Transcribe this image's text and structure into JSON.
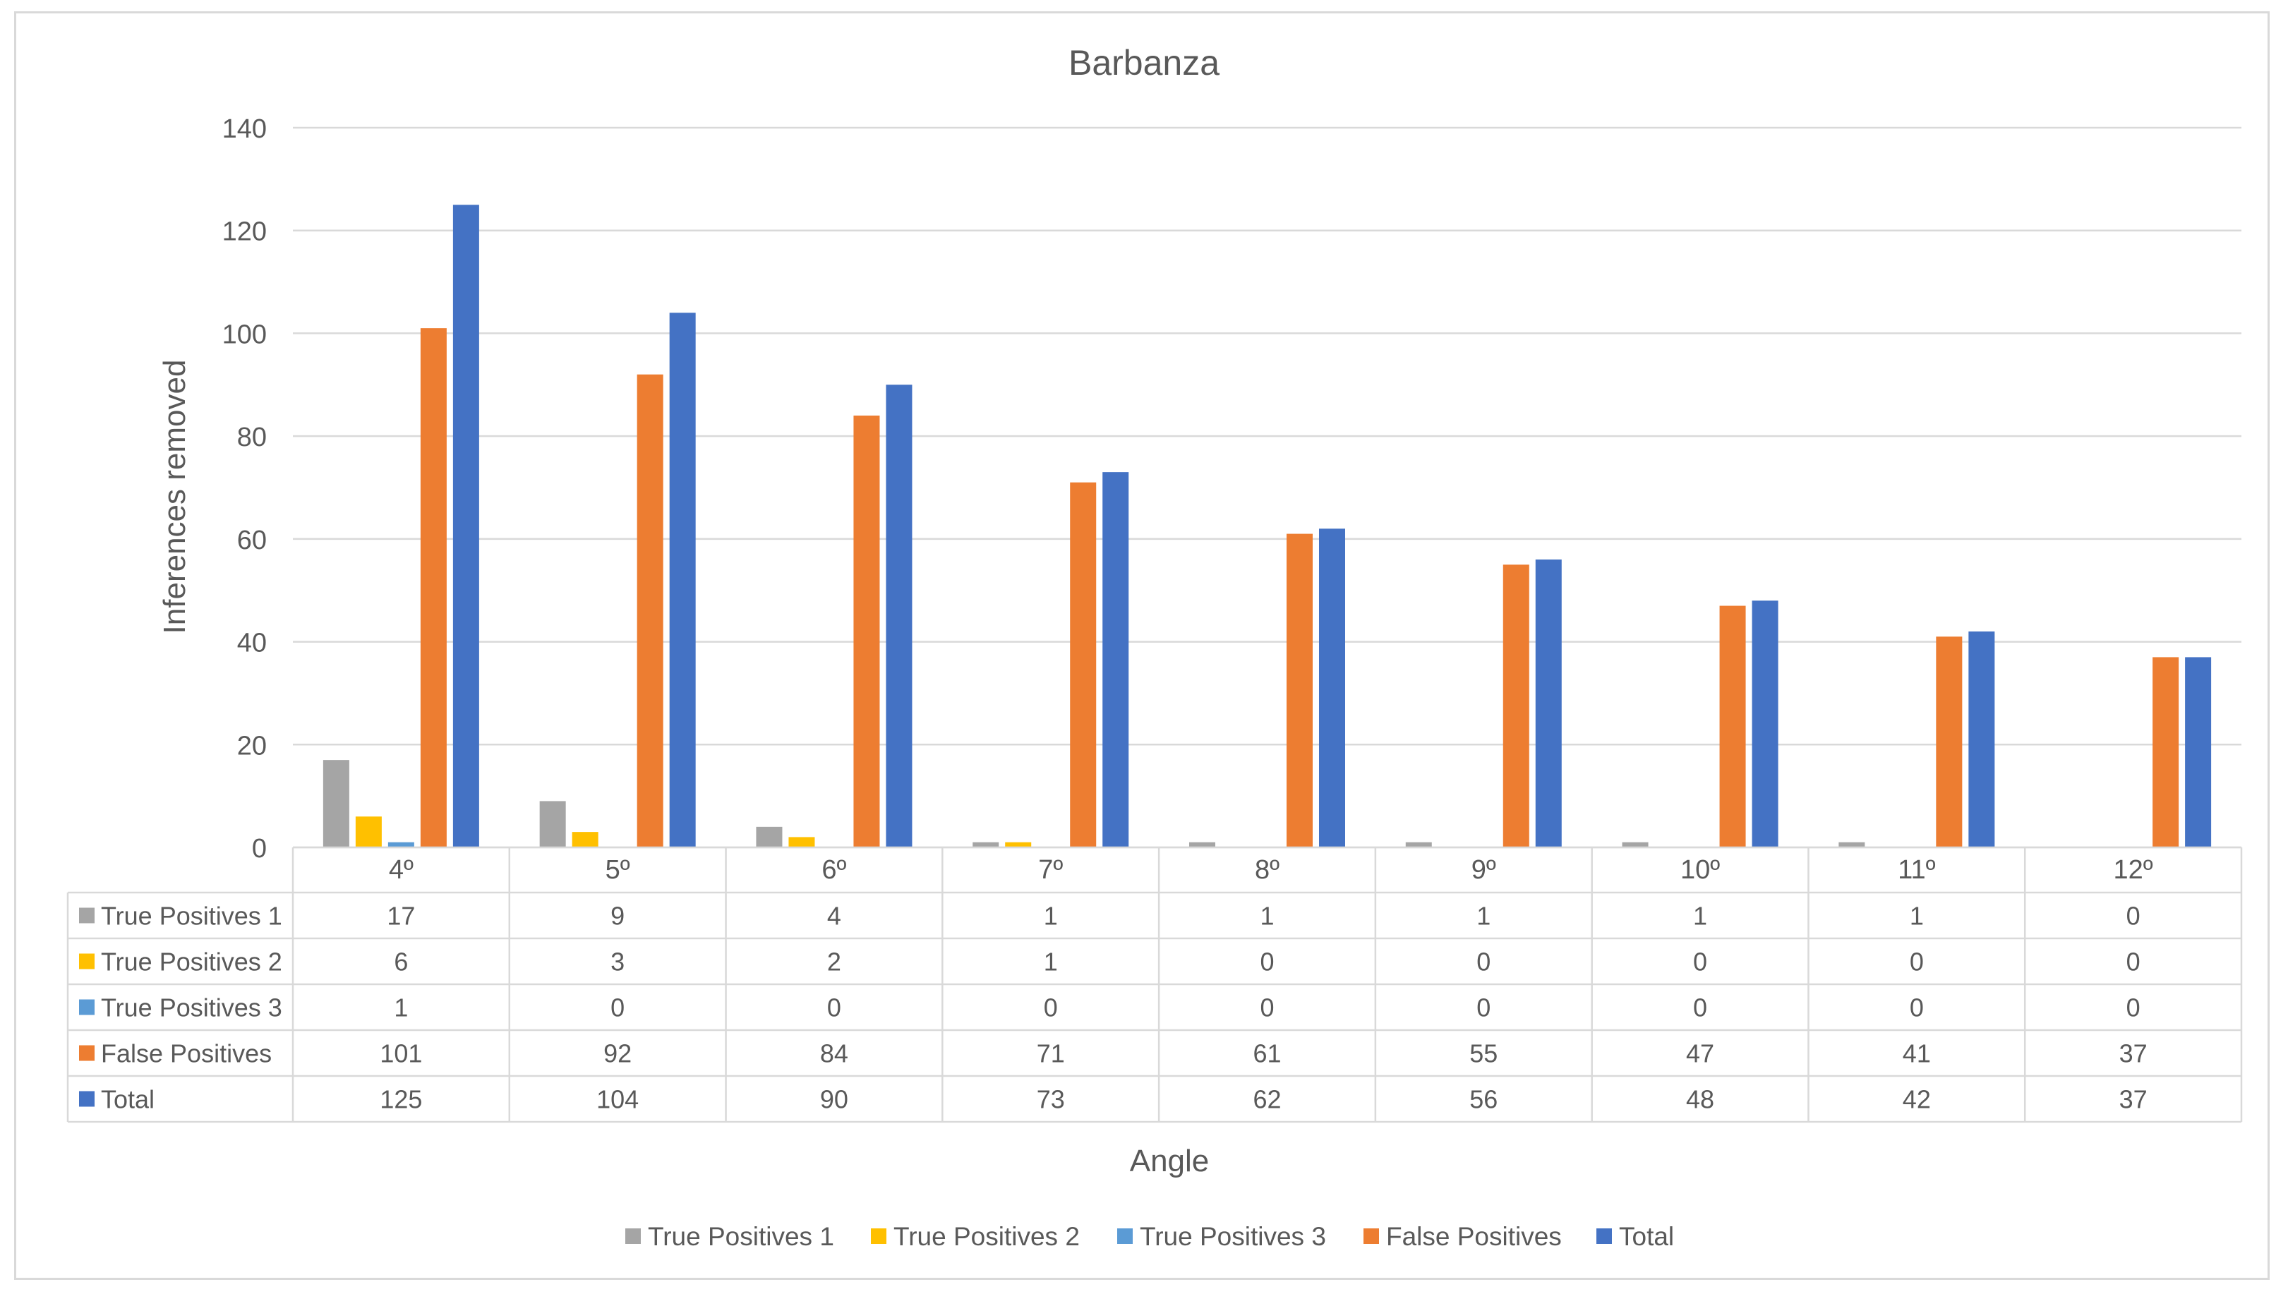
{
  "chart_data": {
    "type": "bar",
    "title": "Barbanza",
    "xlabel": "Angle",
    "ylabel": "Inferences removed",
    "ylim": [
      0,
      140
    ],
    "yticks": [
      0,
      20,
      40,
      60,
      80,
      100,
      120,
      140
    ],
    "grid": true,
    "legend": "bottom",
    "data_table": true,
    "categories": [
      "4º",
      "5º",
      "6º",
      "7º",
      "8º",
      "9º",
      "10º",
      "11º",
      "12º"
    ],
    "series": [
      {
        "name": "True Positives 1",
        "color": "#a5a5a5",
        "values": [
          17,
          9,
          4,
          1,
          1,
          1,
          1,
          1,
          0
        ]
      },
      {
        "name": "True Positives 2",
        "color": "#ffc000",
        "values": [
          6,
          3,
          2,
          1,
          0,
          0,
          0,
          0,
          0
        ]
      },
      {
        "name": "True Positives 3",
        "color": "#5b9bd5",
        "values": [
          1,
          0,
          0,
          0,
          0,
          0,
          0,
          0,
          0
        ]
      },
      {
        "name": "False Positives",
        "color": "#ed7d31",
        "values": [
          101,
          92,
          84,
          71,
          61,
          55,
          47,
          41,
          37
        ]
      },
      {
        "name": "Total",
        "color": "#4472c4",
        "values": [
          125,
          104,
          90,
          73,
          62,
          56,
          48,
          42,
          37
        ]
      }
    ]
  }
}
